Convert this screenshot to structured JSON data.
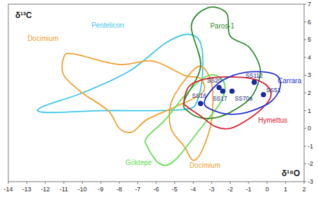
{
  "chart_data": {
    "type": "scatter",
    "x_label": "δ¹⁸O",
    "y_label": "δ¹³C",
    "xlim": [
      -14,
      2
    ],
    "ylim": [
      -3,
      7
    ],
    "xticks": [
      -14,
      -13,
      -12,
      -11,
      -10,
      -9,
      -8,
      -7,
      -6,
      -5,
      -4,
      -3,
      -2,
      -1,
      0,
      1,
      2
    ],
    "yticks": [
      -3,
      -2,
      -1,
      0,
      1,
      2,
      3,
      4,
      5,
      6,
      7
    ],
    "grid": false,
    "series": [
      {
        "name": "Pentelicon",
        "type": "region",
        "color": "#3ec6e8",
        "x": [
          -12.2,
          -10,
          -7.5,
          -5.5,
          -4.3,
          -3.6,
          -3.5,
          -3.8,
          -4.3,
          -6,
          -9,
          -12
        ],
        "values": [
          1.2,
          2.0,
          3.2,
          4.8,
          5.3,
          4.8,
          3.0,
          1.5,
          1.1,
          1.0,
          1.0,
          0.9
        ]
      },
      {
        "name": "Docimium",
        "type": "region",
        "color": "#f0a030",
        "x": [
          -11.0,
          -10.5,
          -8,
          -6.2,
          -4.5,
          -3.6,
          -3.5,
          -5,
          -6.5,
          -7.3,
          -8.0,
          -8.6,
          -10,
          -11
        ],
        "values": [
          4.0,
          4.2,
          3.6,
          3.8,
          3.0,
          2.8,
          2.0,
          1.2,
          0.5,
          -0.2,
          0.0,
          1.0,
          2.0,
          3.0
        ]
      },
      {
        "name": "Docimium",
        "type": "region",
        "color": "#f0a030",
        "x": [
          -5.2,
          -4.4,
          -3.6,
          -3.0,
          -3.0,
          -3.5,
          -4.0,
          -4.5,
          -5.2
        ],
        "values": [
          1.4,
          2.8,
          3.5,
          2.5,
          0.5,
          -1.2,
          -1.8,
          -1.0,
          0.0
        ]
      },
      {
        "name": "Göktepe",
        "type": "region",
        "color": "#66dd55",
        "x": [
          -6.5,
          -5.8,
          -5.0,
          -3.6,
          -2.5,
          -2.3,
          -2.8,
          -3.5,
          -4.5,
          -5.5,
          -6.5
        ],
        "values": [
          -1.0,
          -2.0,
          -1.8,
          0.0,
          1.5,
          2.5,
          3.0,
          2.8,
          1.8,
          0.5,
          -0.5
        ]
      },
      {
        "name": "Paros-1",
        "type": "region",
        "color": "#2e8b2e",
        "x": [
          -4.5,
          -3.6,
          -4.1,
          -3.2,
          -2.2,
          -2.0,
          -1.0,
          -0.4,
          -0.5,
          -1.0,
          -2.0,
          -2.8,
          -3.6,
          -4.2
        ],
        "values": [
          1.5,
          3.5,
          5.8,
          6.8,
          6.5,
          5.2,
          4.6,
          3.5,
          2.5,
          1.6,
          0.9,
          0.6,
          0.6,
          0.9
        ]
      },
      {
        "name": "Hymettus",
        "type": "region",
        "color": "#d62030",
        "x": [
          -4.5,
          -4.2,
          -3.3,
          -2.2,
          -0.8,
          0.0,
          0.2,
          -0.3,
          -1.2,
          -2.0,
          -2.8,
          -3.6,
          -4.3
        ],
        "values": [
          1.5,
          2.4,
          2.8,
          2.9,
          2.8,
          2.4,
          1.8,
          1.1,
          0.4,
          0.0,
          0.1,
          0.7,
          1.2
        ]
      },
      {
        "name": "Carrara",
        "type": "region",
        "color": "#2233cc",
        "x": [
          -3.4,
          -2.8,
          -1.8,
          -0.6,
          0.5,
          0.7,
          0.2,
          -0.8,
          -1.7,
          -2.6
        ],
        "values": [
          1.4,
          2.4,
          3.0,
          3.2,
          3.0,
          2.3,
          1.5,
          1.0,
          0.8,
          0.9
        ]
      },
      {
        "type": "scatter",
        "marker": "circle",
        "color": "#1a2aa0",
        "labels": [
          "SS20",
          "SS17",
          "SS70a",
          "SS112",
          "SS51",
          "SS16"
        ],
        "x": [
          -2.6,
          -2.4,
          -1.9,
          -0.7,
          -0.2,
          -3.6
        ],
        "values": [
          2.3,
          2.1,
          2.1,
          2.6,
          1.9,
          1.4
        ]
      }
    ]
  }
}
